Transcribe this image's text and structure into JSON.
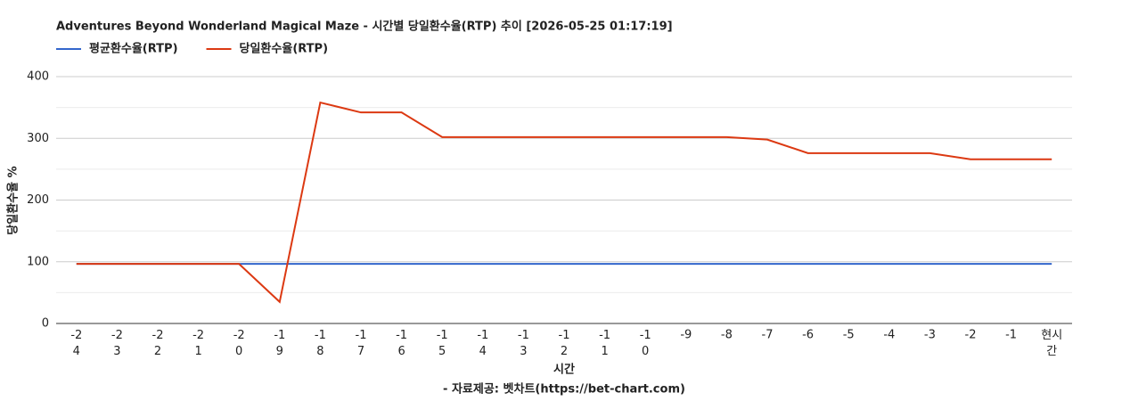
{
  "chart_data": {
    "type": "line",
    "title": "Adventures Beyond Wonderland Magical Maze - 시간별 당일환수율(RTP) 추이 [2026-05-25 01:17:19]",
    "x_label": "시간",
    "y_label": "당일환수율 %",
    "source": "- 자료제공: 벳차트(https://bet-chart.com)",
    "categories": [
      "-24",
      "-23",
      "-22",
      "-21",
      "-20",
      "-19",
      "-18",
      "-17",
      "-16",
      "-15",
      "-14",
      "-13",
      "-12",
      "-11",
      "-10",
      "-9",
      "-8",
      "-7",
      "-6",
      "-5",
      "-4",
      "-3",
      "-2",
      "-1",
      "현시간"
    ],
    "series": [
      {
        "name": "평균환수율(RTP)",
        "color": "#3366cc",
        "values": [
          96.5,
          96.5,
          96.5,
          96.5,
          96.5,
          96.5,
          96.5,
          96.5,
          96.5,
          96.5,
          96.5,
          96.5,
          96.5,
          96.5,
          96.5,
          96.5,
          96.5,
          96.5,
          96.5,
          96.5,
          96.5,
          96.5,
          96.5,
          96.5,
          96.5
        ]
      },
      {
        "name": "당일환수율(RTP)",
        "color": "#dc3912",
        "values": [
          96.5,
          96.5,
          96.5,
          96.5,
          96.5,
          35,
          358,
          342,
          342,
          302,
          302,
          302,
          302,
          302,
          302,
          302,
          302,
          298,
          276,
          276,
          276,
          276,
          266,
          266,
          266
        ]
      }
    ],
    "ylim": [
      0,
      400
    ],
    "yticks": [
      0,
      100,
      200,
      300,
      400
    ],
    "minor_yticks": [
      50,
      150,
      250,
      350
    ],
    "grid": true,
    "legend": "top"
  }
}
